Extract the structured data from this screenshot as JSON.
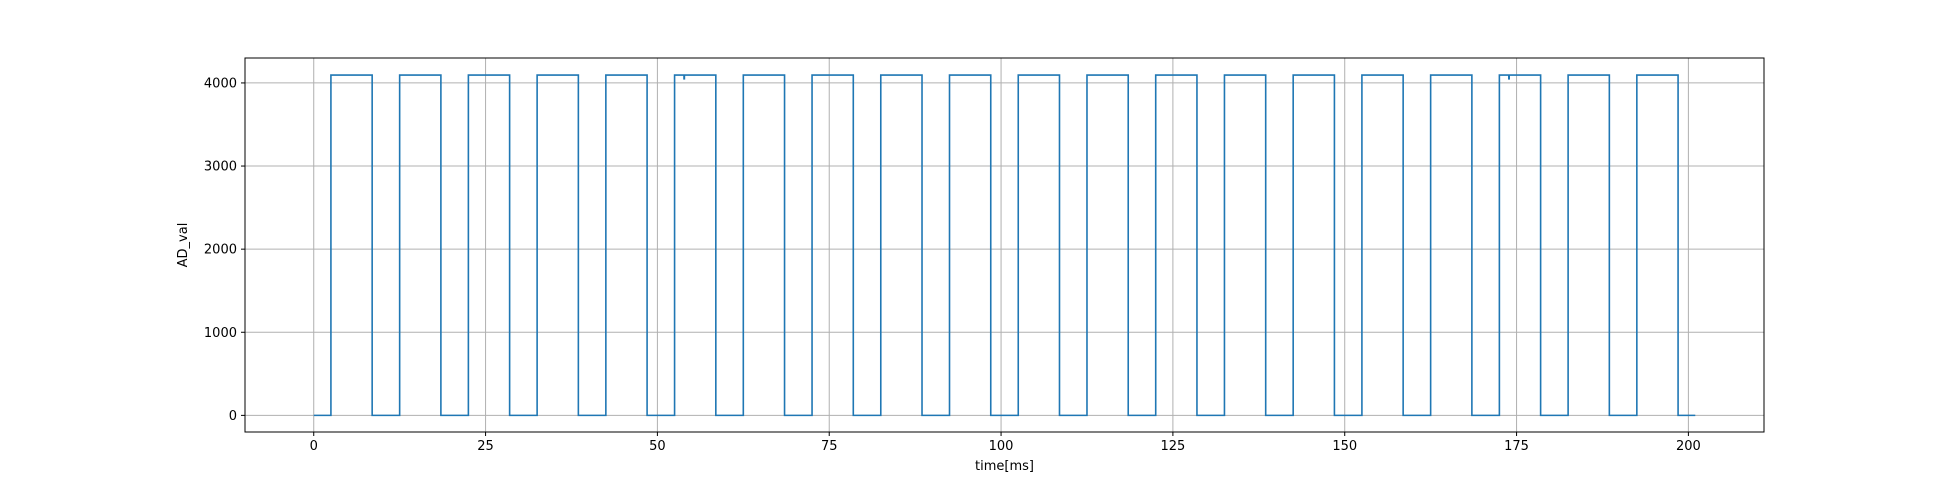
{
  "chart_data": {
    "type": "line",
    "title": "",
    "xlabel": "time[ms]",
    "ylabel": "AD_val",
    "xlim": [
      -10,
      211
    ],
    "ylim": [
      -200,
      4300
    ],
    "grid": true,
    "line_color": "#1f77b4",
    "x_ticks": [
      0,
      25,
      50,
      75,
      100,
      125,
      150,
      175,
      200
    ],
    "y_ticks": [
      0,
      1000,
      2000,
      3000,
      4000
    ],
    "series": [
      {
        "name": "",
        "low": 0,
        "high": 4095,
        "x_start": 0,
        "x_end": 201,
        "high_intervals": [
          [
            2.5,
            8.5
          ],
          [
            12.5,
            18.5
          ],
          [
            22.5,
            28.5
          ],
          [
            32.5,
            38.5
          ],
          [
            42.5,
            48.5
          ],
          [
            52.5,
            58.5
          ],
          [
            62.5,
            68.5
          ],
          [
            72.5,
            78.5
          ],
          [
            82.5,
            88.5
          ],
          [
            92.5,
            98.5
          ],
          [
            102.5,
            108.5
          ],
          [
            112.5,
            118.5
          ],
          [
            122.5,
            128.5
          ],
          [
            132.5,
            138.5
          ],
          [
            142.5,
            148.5
          ],
          [
            152.5,
            158.5
          ],
          [
            162.5,
            168.5
          ],
          [
            172.5,
            178.5
          ],
          [
            182.5,
            188.5
          ],
          [
            192.5,
            198.5
          ]
        ],
        "glitches": [
          {
            "x": 53.9,
            "y": 4040
          },
          {
            "x": 173.9,
            "y": 4040
          }
        ]
      }
    ]
  }
}
